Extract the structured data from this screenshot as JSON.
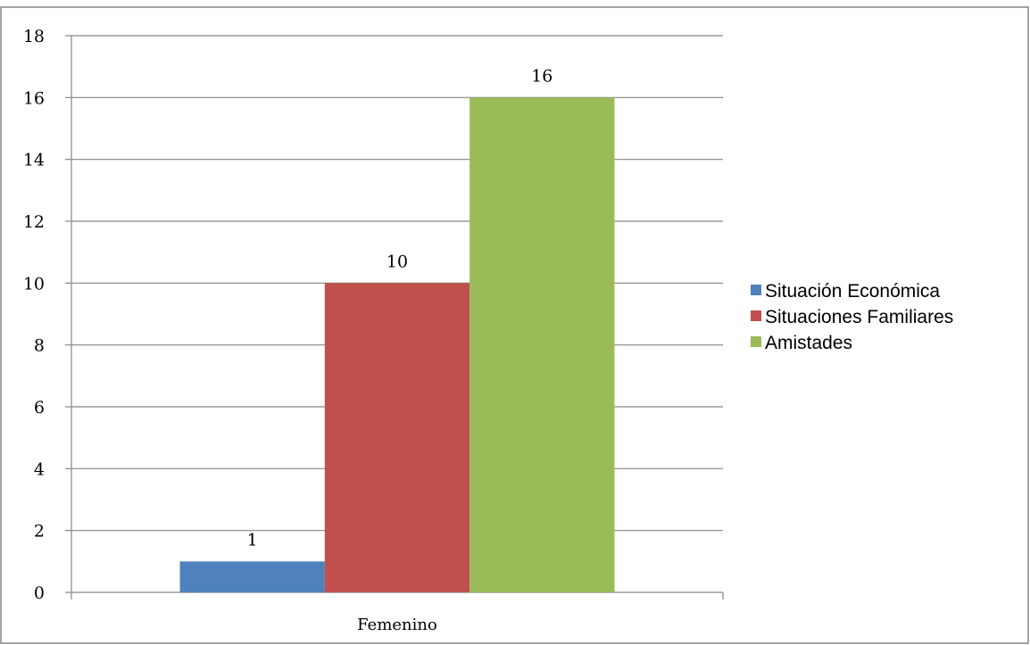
{
  "chart_data": {
    "type": "bar",
    "categories": [
      "Femenino"
    ],
    "series": [
      {
        "name": "Situación Económica",
        "values": [
          1
        ],
        "color": "#4f81bd"
      },
      {
        "name": "Situaciones Familiares",
        "values": [
          10
        ],
        "color": "#c0504d"
      },
      {
        "name": "Amistades",
        "values": [
          16
        ],
        "color": "#9bbb59"
      }
    ],
    "ylim": [
      0,
      18
    ],
    "yticks": [
      0,
      2,
      4,
      6,
      8,
      10,
      12,
      14,
      16,
      18
    ],
    "data_labels": true,
    "grid": true,
    "legend_position": "right",
    "title": "",
    "xlabel": "",
    "ylabel": ""
  }
}
